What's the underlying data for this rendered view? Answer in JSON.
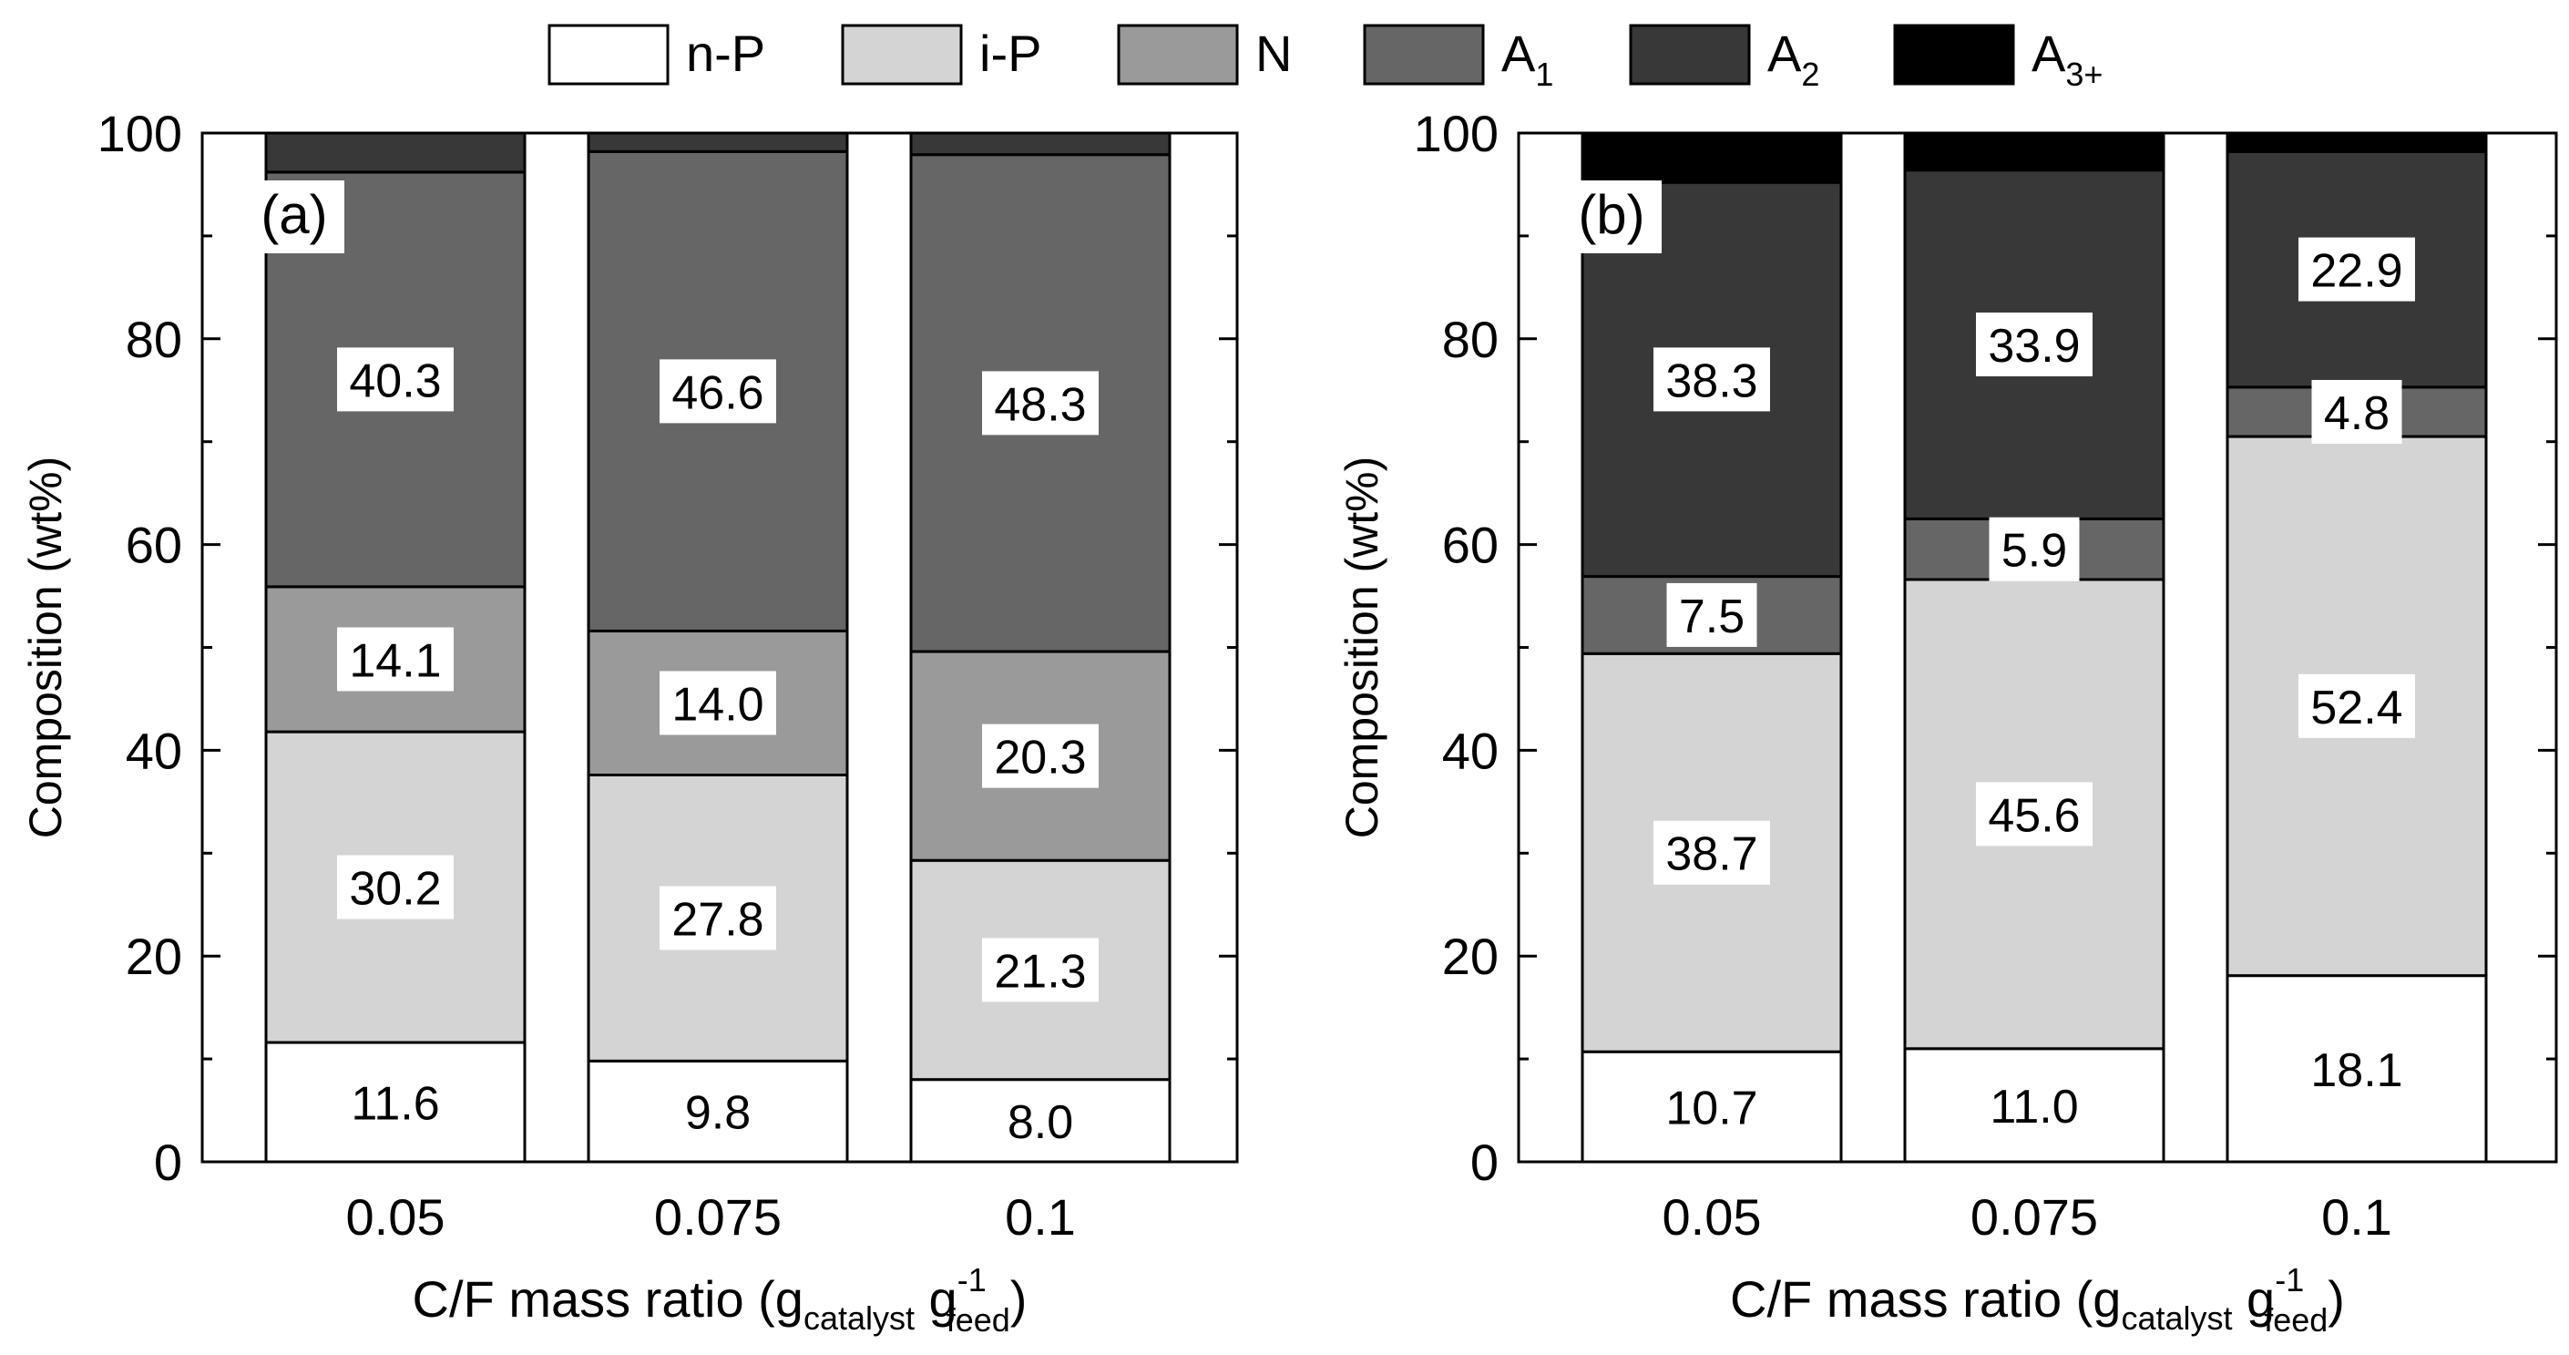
{
  "legend": [
    {
      "label": "n-P",
      "sub": "",
      "color": "#ffffff"
    },
    {
      "label": "i-P",
      "sub": "",
      "color": "#d4d4d4"
    },
    {
      "label": "N",
      "sub": "",
      "color": "#9a9a9a"
    },
    {
      "label": "A",
      "sub": "1",
      "color": "#666666"
    },
    {
      "label": "A",
      "sub": "2",
      "color": "#383838"
    },
    {
      "label": "A",
      "sub": "3+",
      "color": "#000000"
    }
  ],
  "xlabel_parts": {
    "main": "C/F mass ratio (g",
    "sub1": "catalyst",
    "mid": " g",
    "sup": "-1",
    "sub2": "feed",
    "end": ")"
  },
  "chart_data": [
    {
      "type": "bar",
      "stacked": true,
      "panel_label": "(a)",
      "ylabel": "Composition (wt%)",
      "ylim": [
        0,
        100
      ],
      "yticks": [
        0,
        20,
        40,
        60,
        80,
        100
      ],
      "categories": [
        "0.05",
        "0.075",
        "0.1"
      ],
      "series": [
        {
          "name": "n-P",
          "values": [
            11.6,
            9.8,
            8.0
          ]
        },
        {
          "name": "i-P",
          "values": [
            30.2,
            27.8,
            21.3
          ]
        },
        {
          "name": "N",
          "values": [
            14.1,
            14.0,
            20.3
          ]
        },
        {
          "name": "A1",
          "values": [
            40.3,
            46.6,
            48.3
          ]
        },
        {
          "name": "A2",
          "values": [
            3.8,
            1.8,
            2.1
          ]
        },
        {
          "name": "A3+",
          "values": [
            0,
            0,
            0
          ]
        }
      ],
      "data_labels": [
        {
          "series": "n-P",
          "values": [
            "11.6",
            "9.8",
            "8.0"
          ]
        },
        {
          "series": "i-P",
          "values": [
            "30.2",
            "27.8",
            "21.3"
          ]
        },
        {
          "series": "N",
          "values": [
            "14.1",
            "14.0",
            "20.3"
          ]
        },
        {
          "series": "A1",
          "values": [
            "40.3",
            "46.6",
            "48.3"
          ]
        }
      ]
    },
    {
      "type": "bar",
      "stacked": true,
      "panel_label": "(b)",
      "ylabel": "Composition (wt%)",
      "ylim": [
        0,
        100
      ],
      "yticks": [
        0,
        20,
        40,
        60,
        80,
        100
      ],
      "categories": [
        "0.05",
        "0.075",
        "0.1"
      ],
      "series": [
        {
          "name": "n-P",
          "values": [
            10.7,
            11.0,
            18.1
          ]
        },
        {
          "name": "i-P",
          "values": [
            38.7,
            45.6,
            52.4
          ]
        },
        {
          "name": "N",
          "values": [
            0,
            0,
            0
          ]
        },
        {
          "name": "A1",
          "values": [
            7.5,
            5.9,
            4.8
          ]
        },
        {
          "name": "A2",
          "values": [
            38.3,
            33.9,
            22.9
          ]
        },
        {
          "name": "A3+",
          "values": [
            4.8,
            3.6,
            1.8
          ]
        }
      ],
      "data_labels": [
        {
          "series": "n-P",
          "values": [
            "10.7",
            "11.0",
            "18.1"
          ]
        },
        {
          "series": "i-P",
          "values": [
            "38.7",
            "45.6",
            "52.4"
          ]
        },
        {
          "series": "A1",
          "values": [
            "7.5",
            "5.9",
            "4.8"
          ]
        },
        {
          "series": "A2",
          "values": [
            "38.3",
            "33.9",
            "22.9"
          ]
        }
      ]
    }
  ]
}
